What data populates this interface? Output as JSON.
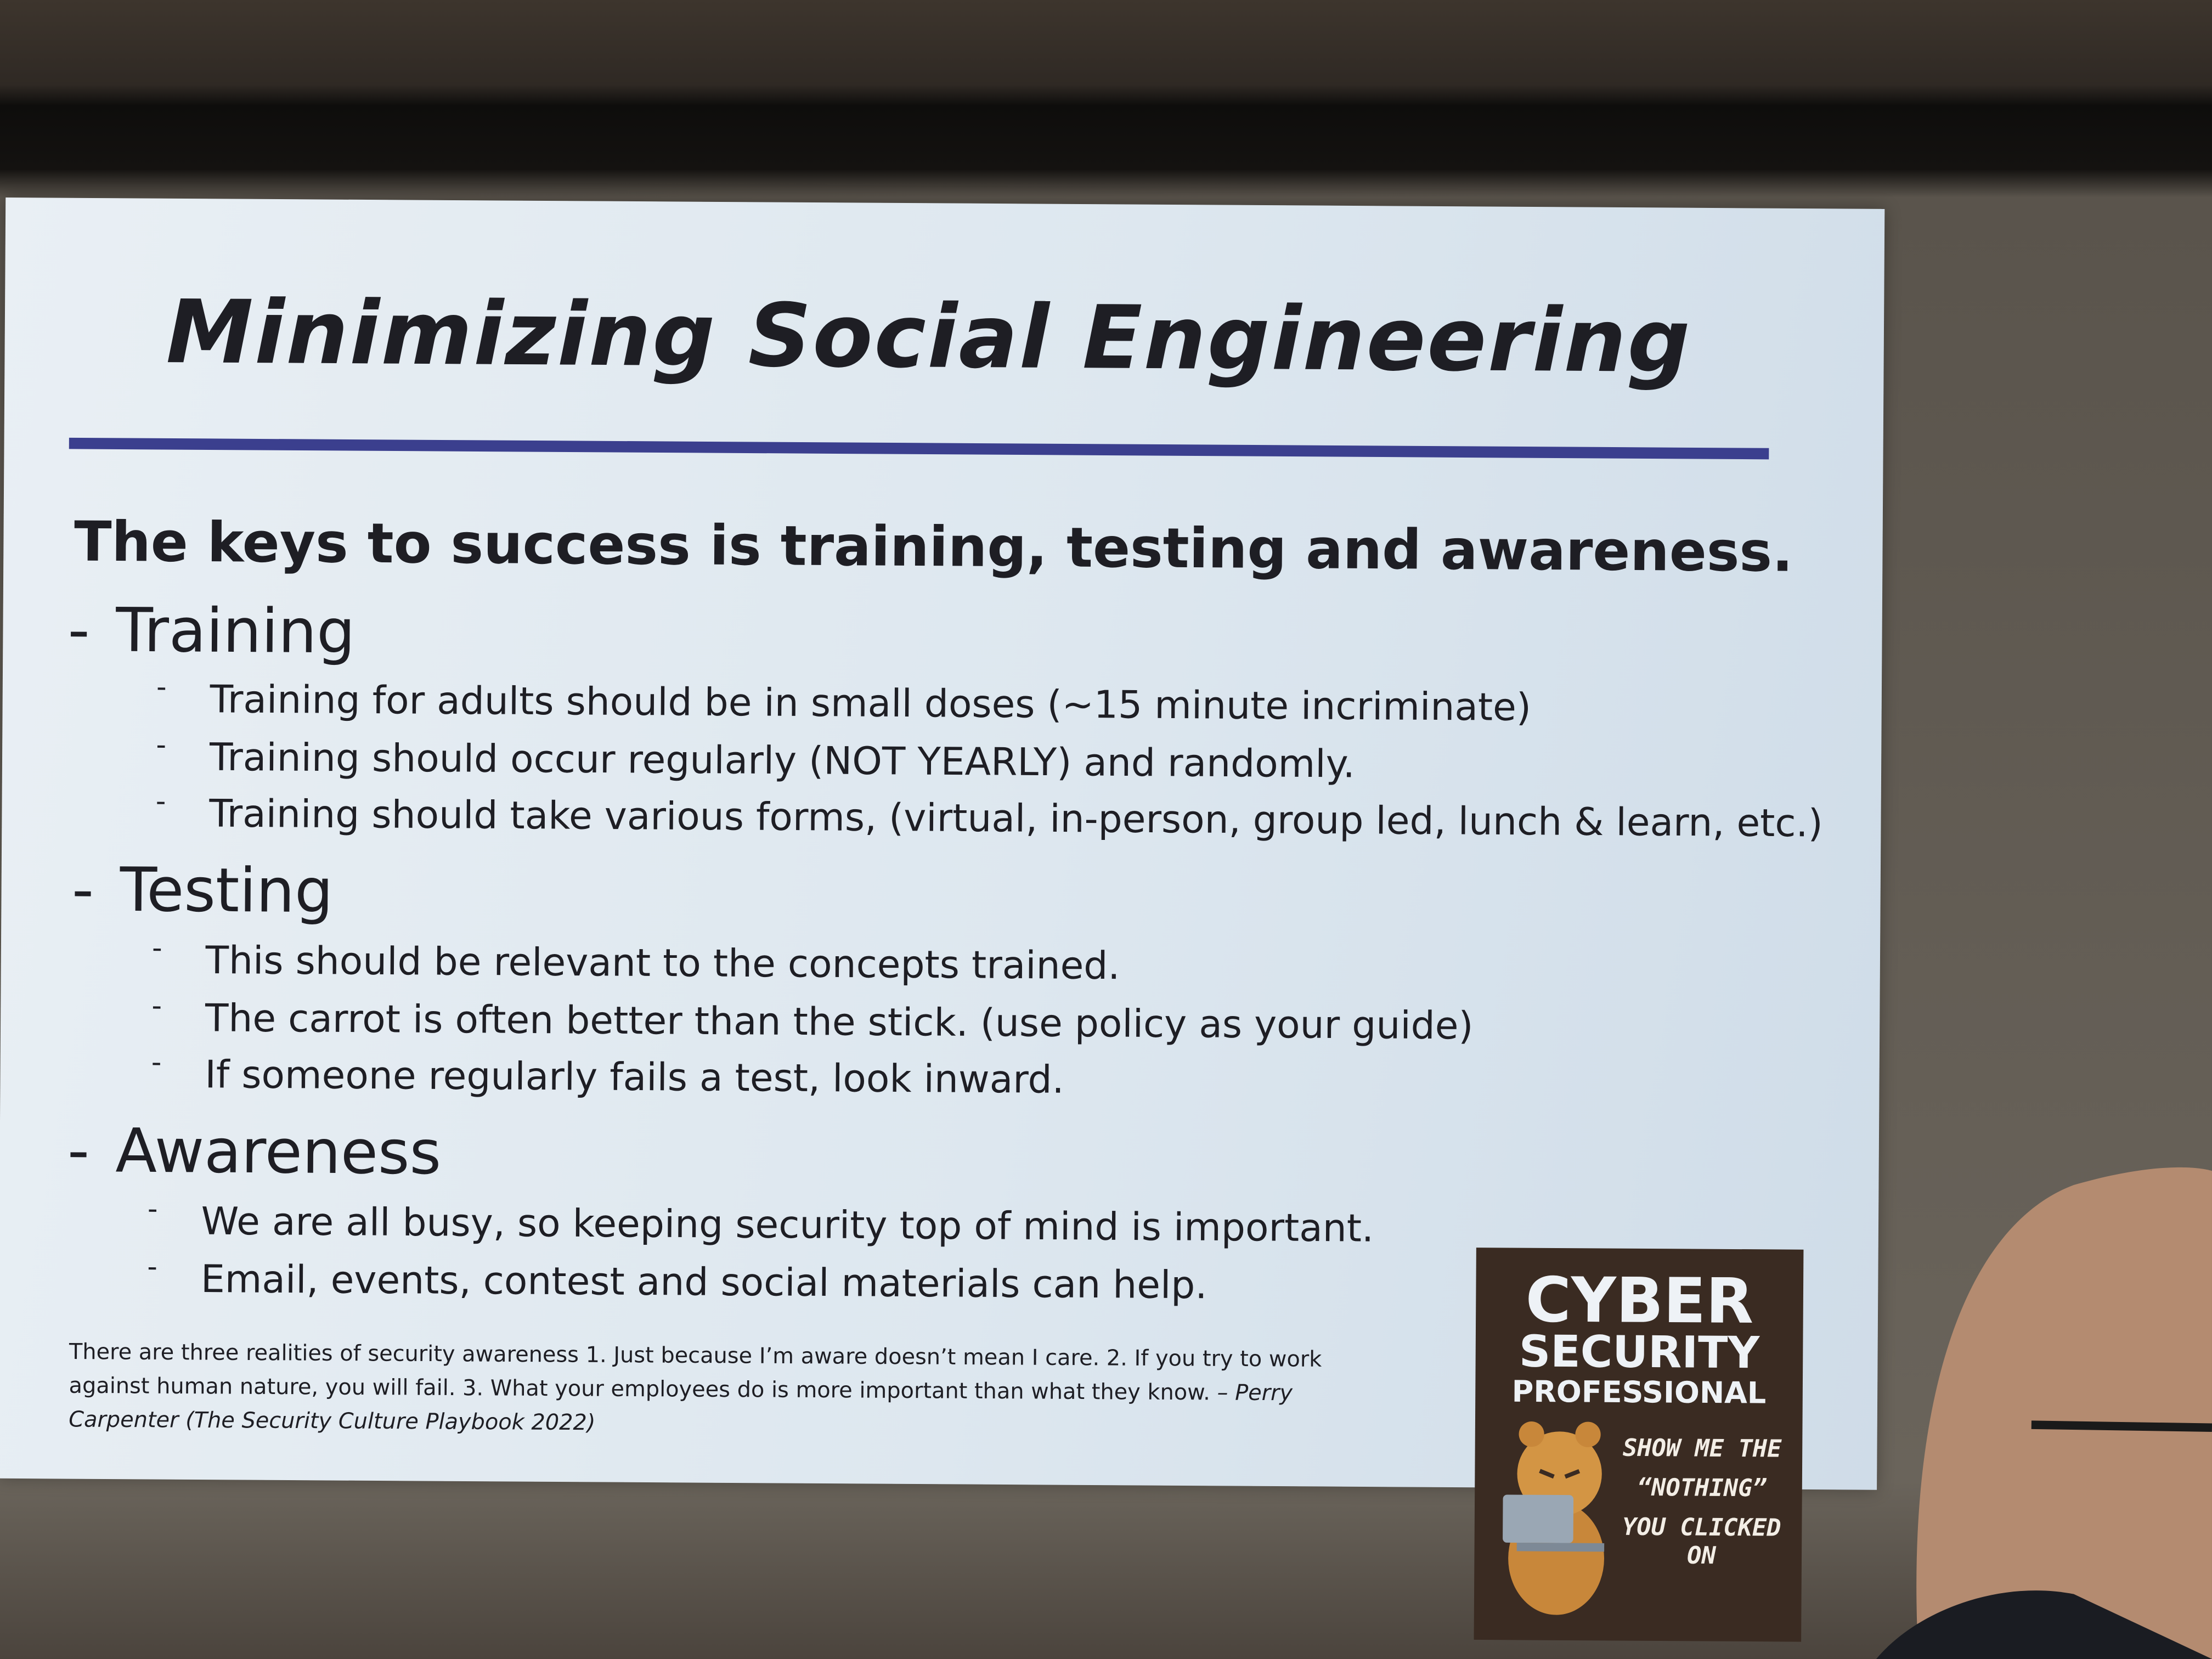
{
  "slide": {
    "title": "Minimizing Social Engineering",
    "subtitle": "The keys to success is training, testing and awareness.",
    "sections": [
      {
        "heading": "Training",
        "items": [
          "Training for adults should be in small doses (~15 minute incriminate)",
          "Training should occur regularly (NOT YEARLY) and randomly.",
          "Training should take various forms, (virtual, in-person, group led, lunch & learn, etc.)"
        ]
      },
      {
        "heading": "Testing",
        "items": [
          "This should be relevant to the concepts trained.",
          "The carrot is often better than the stick. (use policy as your guide)",
          "If someone regularly fails a test, look inward."
        ]
      },
      {
        "heading": "Awareness",
        "items": [
          "We are all busy, so keeping security top of mind is important.",
          "Email, events, contest and social materials can help."
        ]
      }
    ],
    "quote": {
      "text": "There are three realities of security awareness 1. Just because I’m aware doesn’t mean I care. 2. If you try to work against human nature, you will fail. 3. What your employees do is more important than what they know.",
      "attribution": "– Perry Carpenter (The Security Culture Playbook 2022)"
    }
  },
  "poster": {
    "title_lines": [
      "CYBER",
      "SECURITY",
      "PROFESSIONAL"
    ],
    "caption_lines": [
      "SHOW ME THE",
      "“NOTHING”",
      "YOU CLICKED ON"
    ]
  }
}
